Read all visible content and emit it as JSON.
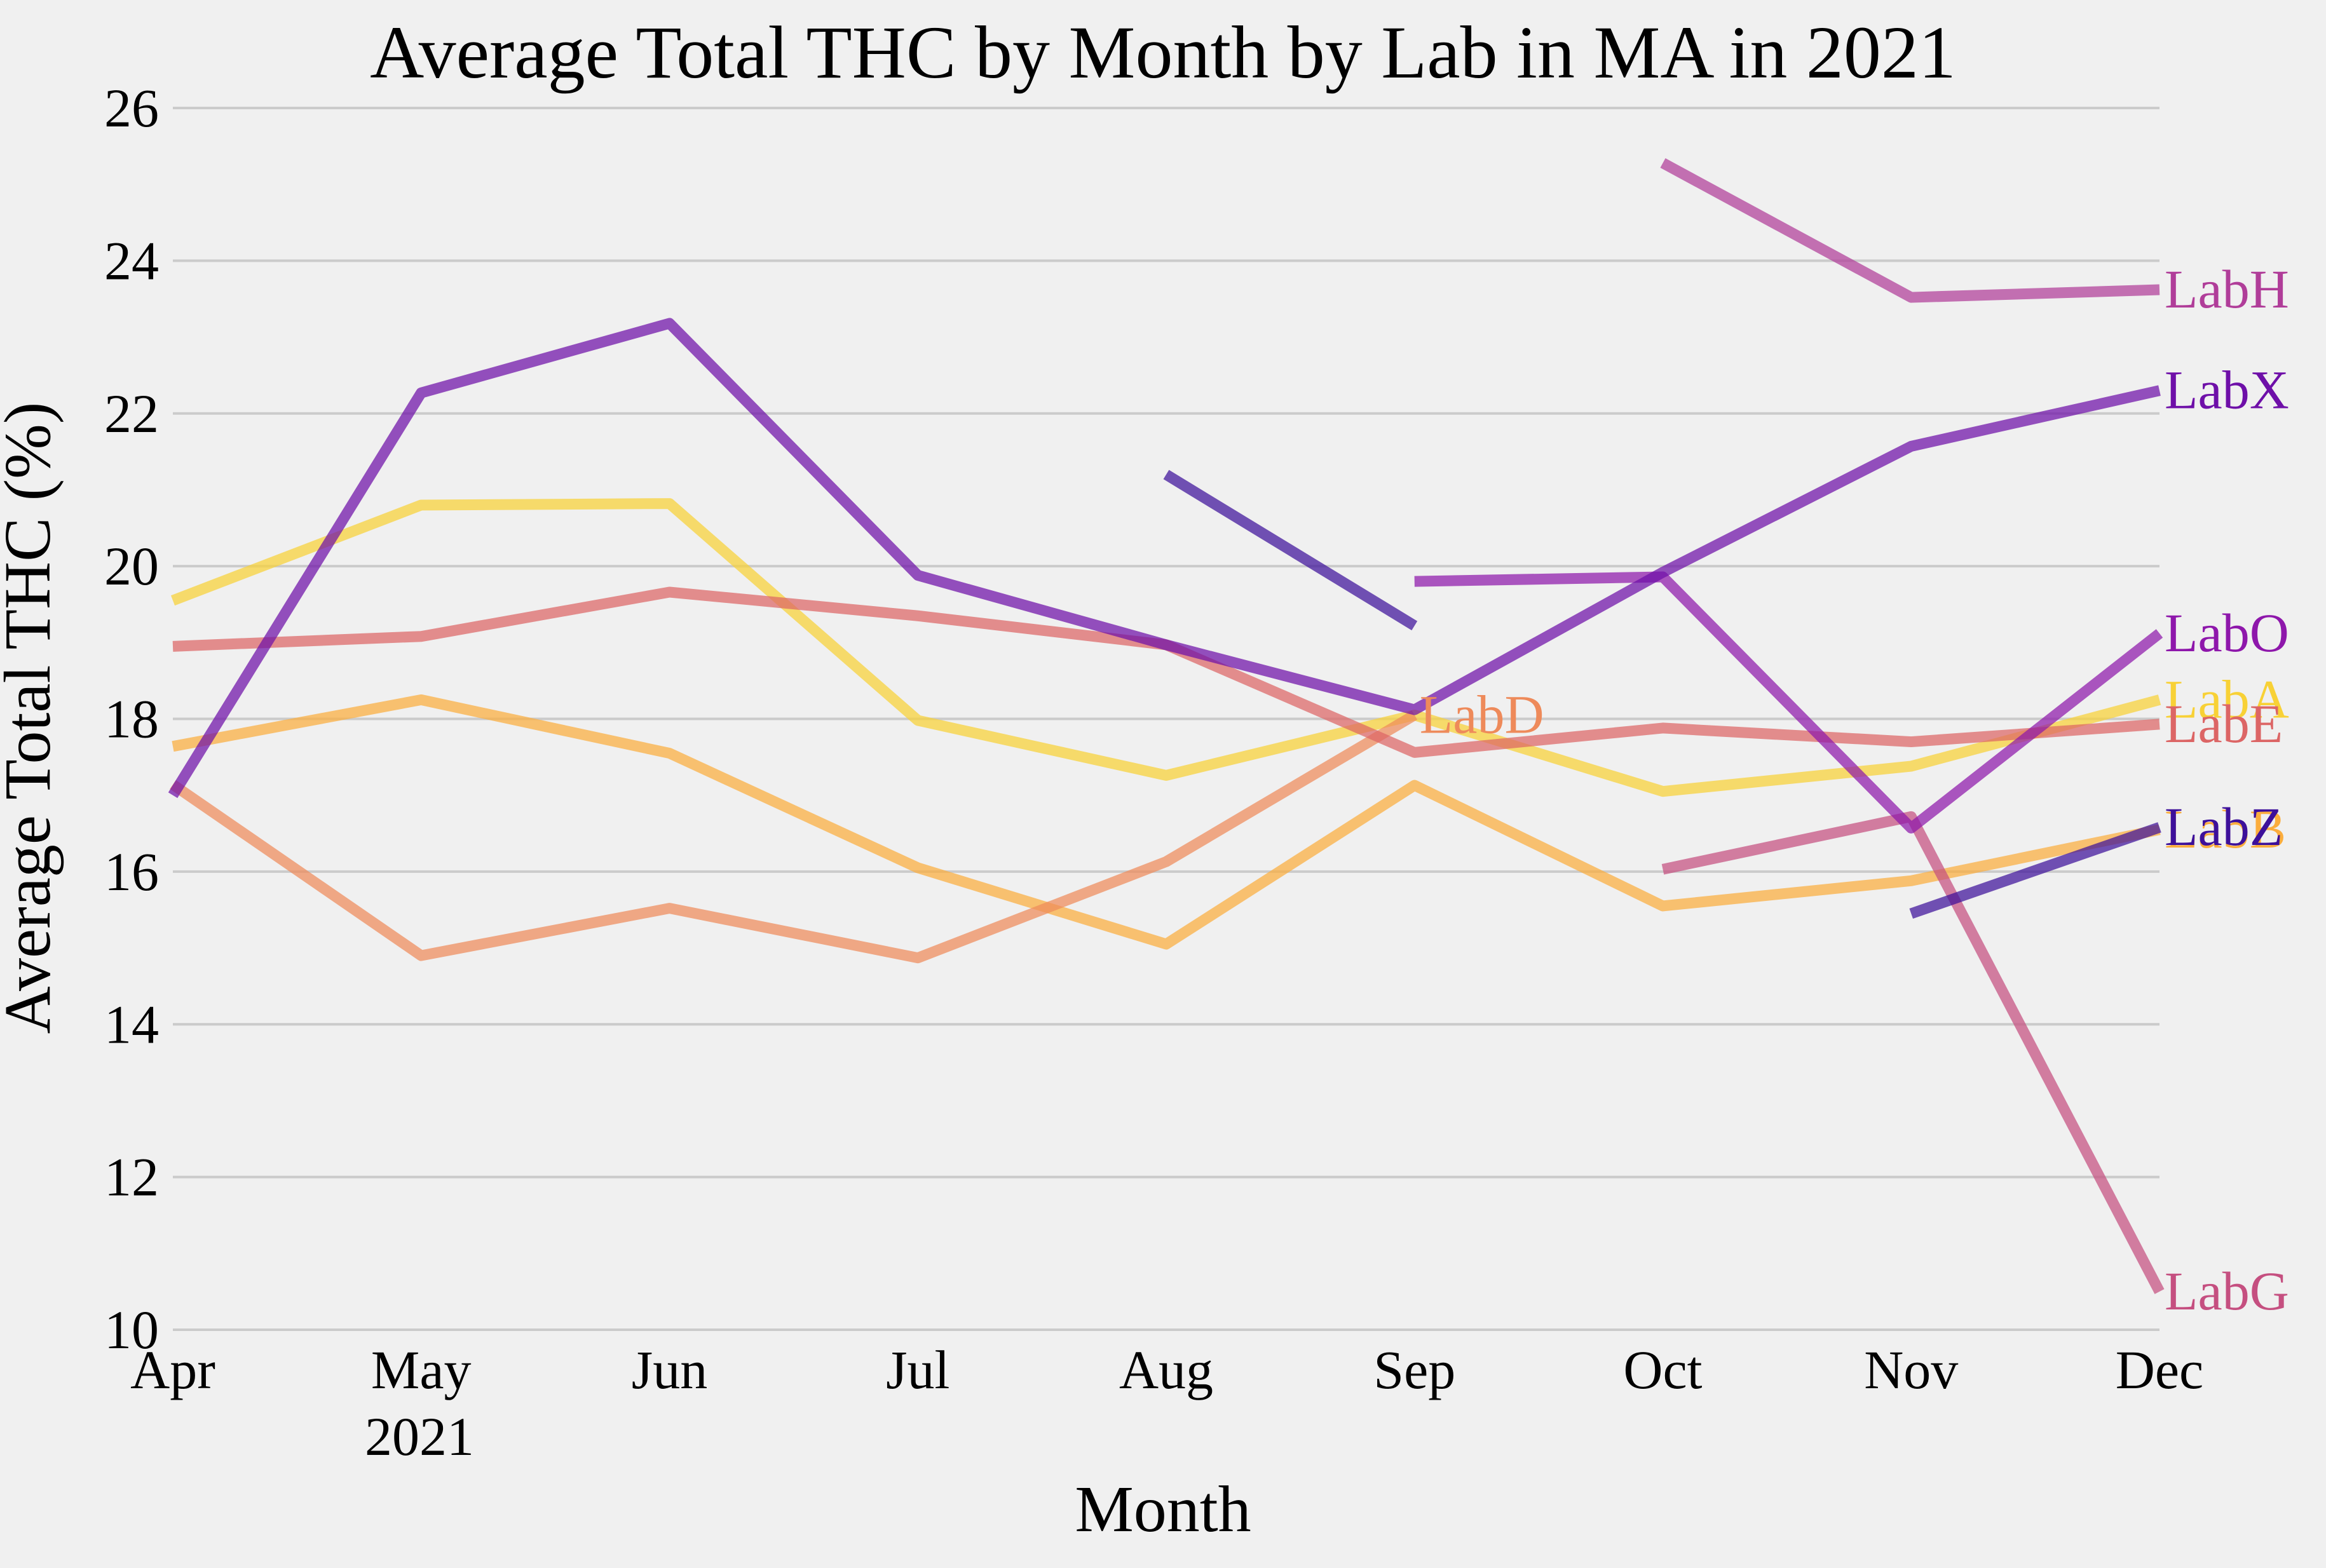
{
  "chart_data": {
    "type": "line",
    "title": "Average Total THC by Month by Lab in MA in 2021",
    "xlabel": "Month",
    "ylabel": "Average Total THC (%)",
    "categories": [
      "Apr",
      "May",
      "Jun",
      "Jul",
      "Aug",
      "Sep",
      "Oct",
      "Nov",
      "Dec"
    ],
    "year_label": "2021",
    "ylim": [
      10,
      26
    ],
    "yticks": [
      10,
      12,
      14,
      16,
      18,
      20,
      22,
      24,
      26
    ],
    "grid": "horizontal",
    "legend": "inline labels at line ends",
    "series": [
      {
        "name": "LabA",
        "color": "#f8d136",
        "values": [
          19.55,
          20.8,
          20.82,
          17.98,
          17.26,
          18.05,
          17.05,
          17.38,
          18.25
        ]
      },
      {
        "name": "LabB",
        "color": "#fbad3d",
        "values": [
          17.64,
          18.25,
          17.55,
          16.05,
          15.05,
          17.13,
          15.55,
          15.88,
          16.55
        ]
      },
      {
        "name": "LabD",
        "color": "#ee8a5a",
        "values": [
          17.14,
          14.9,
          15.52,
          14.87,
          16.13,
          18.05,
          null,
          null,
          null
        ]
      },
      {
        "name": "LabE",
        "color": "#dc6565",
        "values": [
          18.95,
          19.08,
          19.66,
          19.35,
          18.97,
          17.56,
          17.88,
          17.7,
          17.93
        ]
      },
      {
        "name": "LabG",
        "color": "#c54f80",
        "values": [
          null,
          null,
          null,
          null,
          null,
          null,
          16.03,
          16.72,
          10.5
        ]
      },
      {
        "name": "LabH",
        "color": "#b03d99",
        "values": [
          null,
          null,
          null,
          null,
          null,
          null,
          25.28,
          23.52,
          23.62
        ]
      },
      {
        "name": "LabO",
        "color": "#8e17ab",
        "values": [
          null,
          null,
          null,
          null,
          null,
          19.8,
          19.86,
          16.57,
          19.12
        ]
      },
      {
        "name": "LabX",
        "color": "#6e0fa8",
        "values": [
          17.0,
          22.27,
          23.18,
          19.88,
          18.97,
          18.12,
          19.92,
          21.57,
          22.3
        ]
      },
      {
        "name": "LabZ",
        "color": "#3d109a",
        "values": [
          null,
          null,
          null,
          null,
          21.2,
          19.22,
          null,
          15.45,
          16.58
        ]
      }
    ],
    "annotations": [
      {
        "text": "LabA",
        "x": "Dec",
        "y": 18.25
      },
      {
        "text": "LabB",
        "x": "Dec",
        "y": 16.55
      },
      {
        "text": "LabD",
        "x": "Sep",
        "y": 18.05
      },
      {
        "text": "LabE",
        "x": "Dec",
        "y": 17.93
      },
      {
        "text": "LabG",
        "x": "Dec",
        "y": 10.5
      },
      {
        "text": "LabH",
        "x": "Dec",
        "y": 23.62
      },
      {
        "text": "LabO",
        "x": "Dec",
        "y": 19.12
      },
      {
        "text": "LabX",
        "x": "Dec",
        "y": 22.3
      },
      {
        "text": "LabZ",
        "x": "Dec",
        "y": 16.58
      }
    ]
  }
}
